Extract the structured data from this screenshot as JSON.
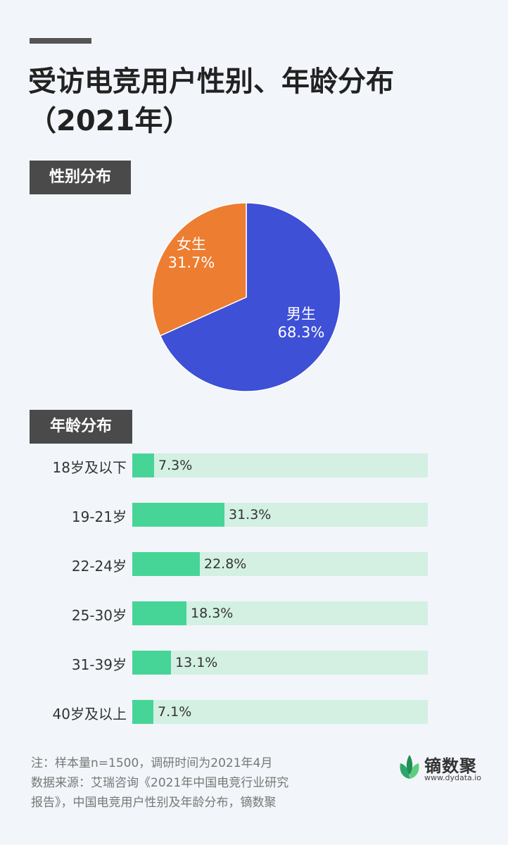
{
  "title": "受访电竞用户性别、年龄分布（2021年）",
  "gender_section": {
    "label": "性别分布"
  },
  "age_section": {
    "label": "年龄分布"
  },
  "colors": {
    "male": "#3e50d6",
    "female": "#ed7d31",
    "bar_fill": "#47d597",
    "bar_track": "#d3f0e3",
    "tag_bg": "#4a4a4a"
  },
  "chart_data": [
    {
      "type": "pie",
      "title": "性别分布",
      "slices": [
        {
          "label": "男生",
          "value": 68.3,
          "value_label": "68.3%"
        },
        {
          "label": "女生",
          "value": 31.7,
          "value_label": "31.7%"
        }
      ]
    },
    {
      "type": "bar",
      "orientation": "horizontal",
      "title": "年龄分布",
      "categories": [
        "18岁及以下",
        "19-21岁",
        "22-24岁",
        "25-30岁",
        "31-39岁",
        "40岁及以上"
      ],
      "values": [
        7.3,
        31.3,
        22.8,
        18.3,
        13.1,
        7.1
      ],
      "value_labels": [
        "7.3%",
        "31.3%",
        "22.8%",
        "18.3%",
        "13.1%",
        "7.1%"
      ],
      "xlim": [
        0,
        100
      ]
    }
  ],
  "footnote": {
    "line1": "注：样本量n=1500，调研时间为2021年4月",
    "line2": "数据来源：艾瑞咨询《2021年中国电竞行业研究",
    "line3": "报告》，中国电竞用户性别及年龄分布，镝数聚"
  },
  "logo": {
    "name": "镝数聚",
    "url": "www.dydata.io",
    "icon": "leaf-icon"
  }
}
